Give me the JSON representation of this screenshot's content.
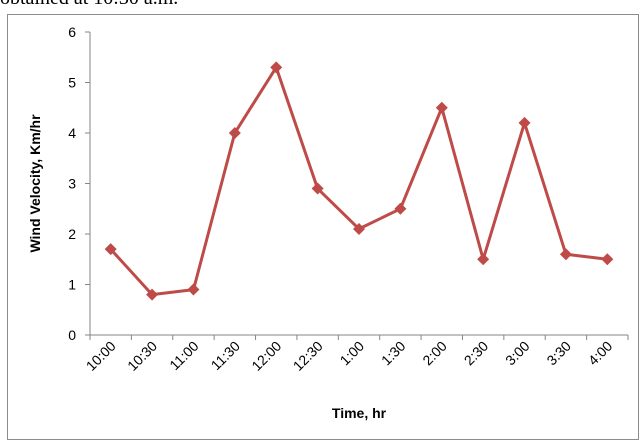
{
  "caption": "obtained at 10:30 a.m.",
  "chart_data": {
    "type": "line",
    "title": "",
    "xlabel": "Time, hr",
    "ylabel": "Wind Velocity, Km/hr",
    "categories": [
      "10:00",
      "10:30",
      "11:00",
      "11:30",
      "12:00",
      "12:30",
      "1:00",
      "1:30",
      "2:00",
      "2:30",
      "3:00",
      "3:30",
      "4:00"
    ],
    "series": [
      {
        "values": [
          1.7,
          0.8,
          0.9,
          4.0,
          5.3,
          2.9,
          2.1,
          2.5,
          4.5,
          1.5,
          4.2,
          1.6,
          1.5
        ],
        "color": "#be4b48",
        "marker": "diamond"
      }
    ],
    "ylim": [
      0,
      6
    ],
    "yticks": [
      0,
      1,
      2,
      3,
      4,
      5,
      6
    ],
    "grid": false,
    "legend": "none"
  }
}
